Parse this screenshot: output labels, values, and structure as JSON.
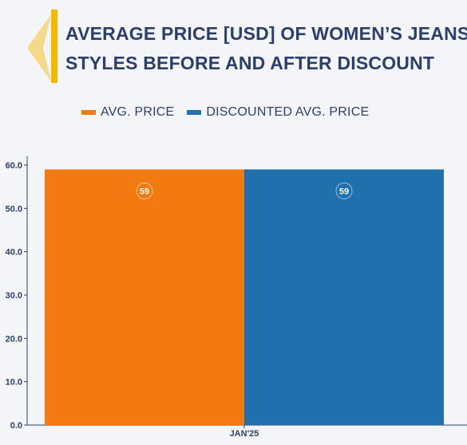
{
  "title_line1": "AVERAGE PRICE [USD] OF WOMEN’S JEANS",
  "title_line2": "STYLES BEFORE AND AFTER DISCOUNT",
  "colors": {
    "title": "#2c3e6b",
    "accent": "#f5b800",
    "avg": "#f27a10",
    "discounted": "#1f70ad"
  },
  "chart_data": {
    "type": "bar",
    "categories": [
      "JAN'25"
    ],
    "series": [
      {
        "name": "AVG. PRICE",
        "values": [
          59
        ],
        "color": "#f27a10"
      },
      {
        "name": "DISCOUNTED AVG. PRICE",
        "values": [
          59
        ],
        "color": "#1f70ad"
      }
    ],
    "ylim": [
      0,
      60
    ],
    "yticks": [
      "0.0",
      "10.0",
      "20.0",
      "30.0",
      "40.0",
      "50.0",
      "60.0"
    ],
    "ytick_values": [
      0,
      10,
      20,
      30,
      40,
      50,
      60
    ],
    "data_labels": [
      "59",
      "59"
    ],
    "legend": "top-left",
    "grid": false
  }
}
